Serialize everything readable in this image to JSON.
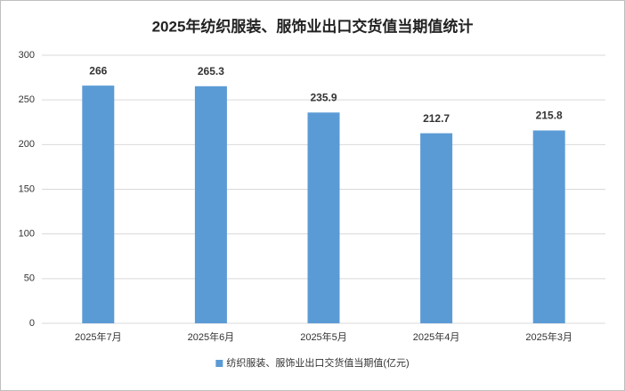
{
  "chart_data": {
    "type": "bar",
    "title": "2025年纺织服装、服饰业出口交货值当期值统计",
    "categories": [
      "2025年7月",
      "2025年6月",
      "2025年5月",
      "2025年4月",
      "2025年3月"
    ],
    "series": [
      {
        "name": "纺织服装、服饰业出口交货值当期值(亿元)",
        "color": "#5b9bd5",
        "values": [
          266,
          265.3,
          235.9,
          212.7,
          215.8
        ]
      }
    ],
    "ylim": [
      0,
      300
    ],
    "yticks": [
      0,
      50,
      100,
      150,
      200,
      250,
      300
    ],
    "grid": true,
    "legend": "bottom"
  }
}
